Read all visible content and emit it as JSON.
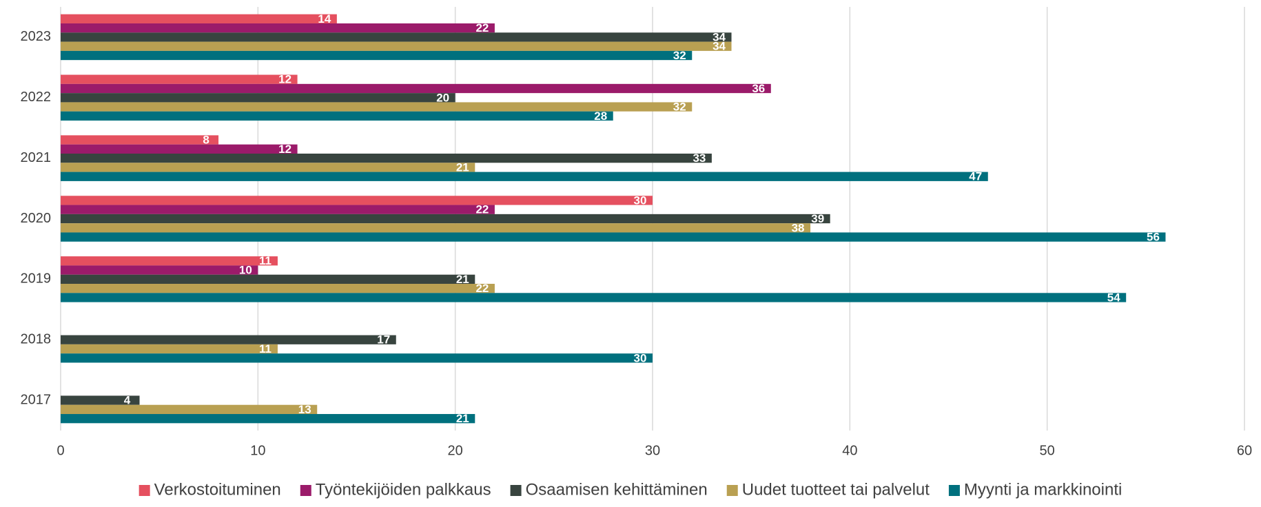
{
  "chart_data": {
    "type": "bar",
    "orientation": "horizontal",
    "categories": [
      "2023",
      "2022",
      "2021",
      "2020",
      "2019",
      "2018",
      "2017"
    ],
    "series": [
      {
        "name": "Verkostoituminen",
        "color": "#e5505f",
        "values": [
          14,
          12,
          8,
          30,
          11,
          null,
          null
        ]
      },
      {
        "name": "Työntekijöiden palkkaus",
        "color": "#9b1b6a",
        "values": [
          22,
          36,
          12,
          22,
          10,
          null,
          null
        ]
      },
      {
        "name": "Osaamisen kehittäminen",
        "color": "#38443f",
        "values": [
          34,
          20,
          33,
          39,
          21,
          17,
          4
        ]
      },
      {
        "name": "Uudet tuotteet tai palvelut",
        "color": "#b9a052",
        "values": [
          34,
          32,
          21,
          38,
          22,
          11,
          13
        ]
      },
      {
        "name": "Myynti ja markkinointi",
        "color": "#00707e",
        "values": [
          32,
          28,
          47,
          56,
          54,
          30,
          21
        ]
      }
    ],
    "xlim": [
      0,
      60
    ],
    "xticks": [
      0,
      10,
      20,
      30,
      40,
      50,
      60
    ],
    "grid": true,
    "legend": "bottom"
  }
}
